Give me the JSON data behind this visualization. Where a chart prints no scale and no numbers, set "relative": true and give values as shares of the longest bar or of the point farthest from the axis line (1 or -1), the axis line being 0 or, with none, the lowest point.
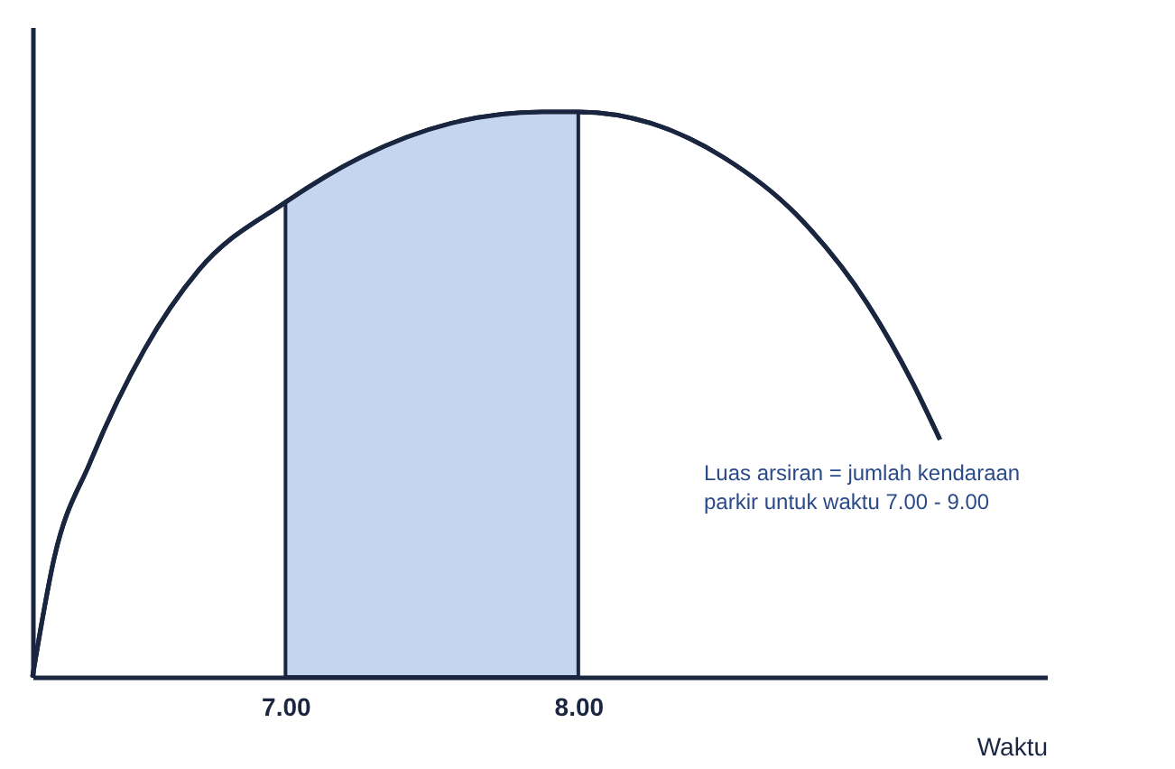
{
  "chart_data": {
    "type": "line",
    "relative": true,
    "xlabel": "Waktu",
    "xlim": [
      6.136,
      9.6
    ],
    "xticks": [
      {
        "value": 7,
        "label": "7.00"
      },
      {
        "value": 8,
        "label": "8.00"
      }
    ],
    "tick_labels": "x",
    "grid": false,
    "marker": "none",
    "line_style": "solid",
    "annotations": [
      "Luas arsiran = jumlah kendaraan\nparkir untuk waktu 7.00 - 9.00"
    ],
    "series": [
      {
        "color": "#1a2540",
        "x": [
          6.136,
          6.21,
          6.333,
          6.519,
          6.704,
          7,
          7.259,
          7.568,
          7.877,
          8,
          8.247,
          8.494,
          8.741,
          8.988,
          9.142,
          9.235
        ],
        "values": [
          0,
          0.21,
          0.38,
          0.58,
          0.72,
          0.84,
          0.92,
          0.98,
          1.0,
          1.0,
          0.98,
          0.92,
          0.82,
          0.66,
          0.52,
          0.42
        ]
      },
      {
        "type": "area",
        "color": "#c5d5ef",
        "x": [
          7,
          7.259,
          7.568,
          7.877,
          8
        ],
        "values": [
          0.84,
          0.92,
          0.98,
          1.0,
          1.0
        ]
      }
    ]
  }
}
